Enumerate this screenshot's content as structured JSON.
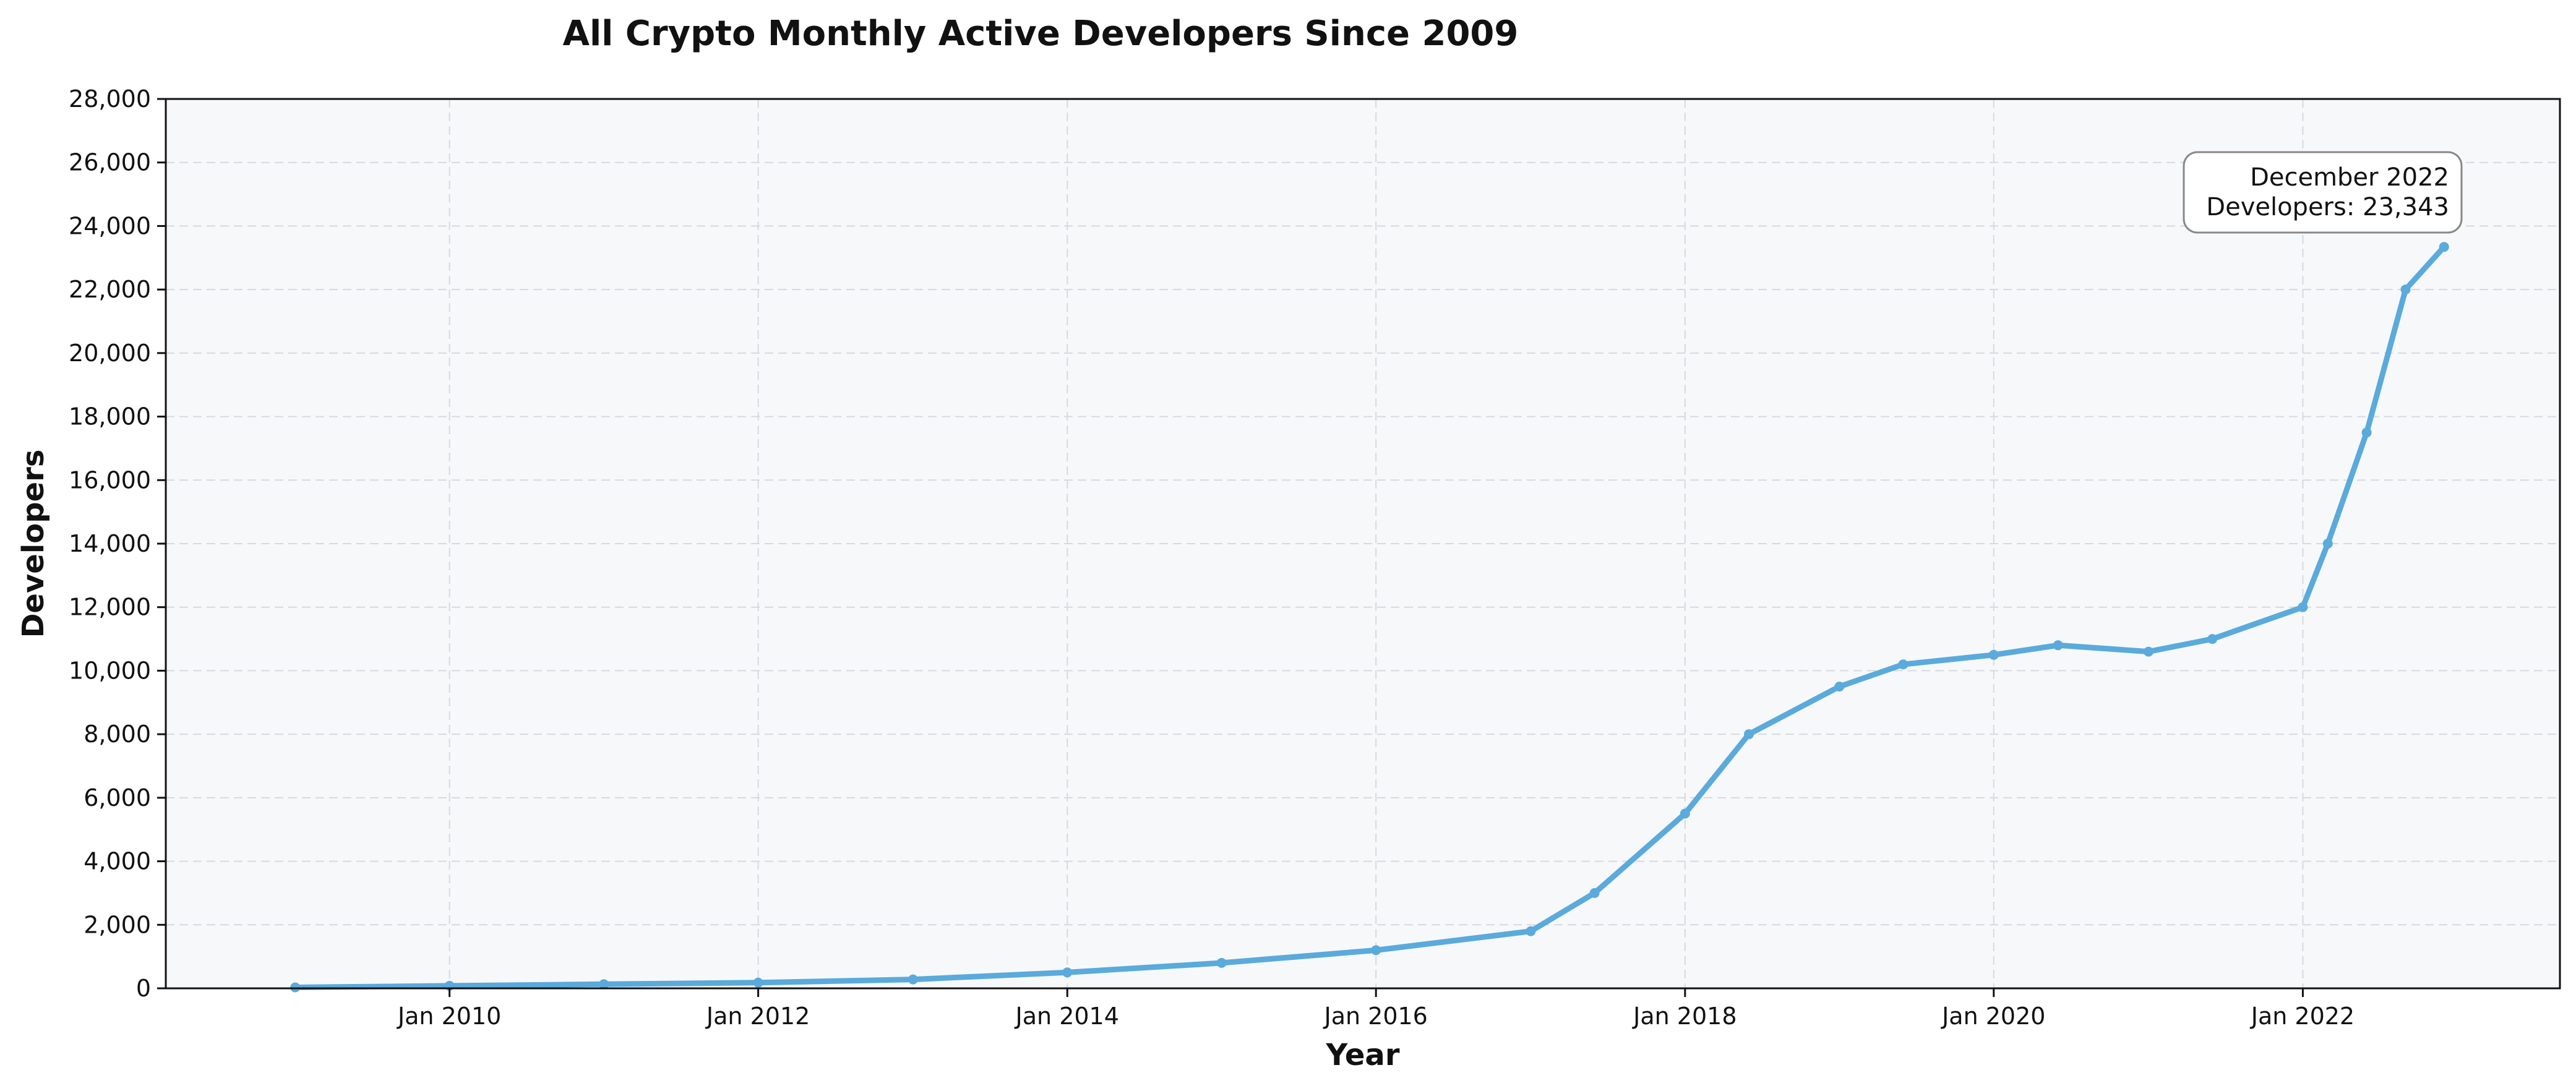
{
  "chart_data": {
    "type": "line",
    "title": "All Crypto Monthly Active Developers Since 2009",
    "xlabel": "Year",
    "ylabel": "Developers",
    "x_axis_type": "date",
    "xlim": [
      "2008-03-01",
      "2023-09-01"
    ],
    "ylim": [
      0,
      28000
    ],
    "y_ticks": [
      0,
      2000,
      4000,
      6000,
      8000,
      10000,
      12000,
      14000,
      16000,
      18000,
      20000,
      22000,
      24000,
      26000,
      28000
    ],
    "y_tick_labels": [
      "0",
      "2,000",
      "4,000",
      "6,000",
      "8,000",
      "10,000",
      "12,000",
      "14,000",
      "16,000",
      "18,000",
      "20,000",
      "22,000",
      "24,000",
      "26,000",
      "28,000"
    ],
    "x_ticks": [
      "2010-01-01",
      "2012-01-01",
      "2014-01-01",
      "2016-01-01",
      "2018-01-01",
      "2020-01-01",
      "2022-01-01"
    ],
    "x_tick_labels": [
      "Jan 2010",
      "Jan 2012",
      "Jan 2014",
      "Jan 2016",
      "Jan 2018",
      "Jan 2020",
      "Jan 2022"
    ],
    "grid": true,
    "line_color": "#5aaadc",
    "plot_background": "#f7f8fa",
    "series": [
      {
        "x": [
          "2009-01-01",
          "2010-01-01",
          "2011-01-01",
          "2012-01-01",
          "2013-01-01",
          "2014-01-01",
          "2015-01-01",
          "2016-01-01",
          "2017-01-01",
          "2017-06-01",
          "2018-01-01",
          "2018-06-01",
          "2019-01-01",
          "2019-06-01",
          "2020-01-01",
          "2020-06-01",
          "2021-01-01",
          "2021-06-01",
          "2022-01-01",
          "2022-03-01",
          "2022-06-01",
          "2022-09-01",
          "2022-12-01"
        ],
        "values": [
          30,
          80,
          130,
          180,
          280,
          500,
          800,
          1200,
          1800,
          3000,
          5500,
          8000,
          9500,
          10200,
          10500,
          10800,
          10600,
          11000,
          12000,
          14000,
          17500,
          22000,
          23343
        ]
      }
    ],
    "annotation": {
      "lines": [
        "December 2022",
        "Developers: 23,343"
      ],
      "x": "2022-12-01",
      "y": 23343
    }
  }
}
